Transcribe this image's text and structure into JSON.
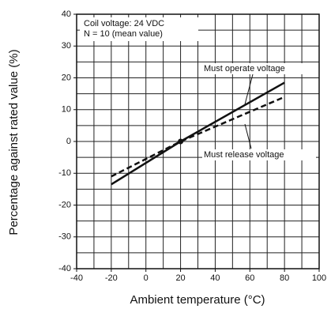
{
  "chart_data": {
    "type": "line",
    "x_label": "Ambient temperature (°C)",
    "y_label": "Percentage against rated value (%)",
    "annotations": [
      "Coil voltage: 24 VDC",
      "N = 10 (mean value)"
    ],
    "x": [
      -20,
      20,
      80
    ],
    "series": [
      {
        "name": "Must operate voltage",
        "color": "#111111",
        "dash": false,
        "values": [
          -13.5,
          0,
          18.5
        ]
      },
      {
        "name": "Must release voltage",
        "color": "#111111",
        "dash": true,
        "values": [
          -11,
          0,
          14
        ]
      }
    ],
    "xlim": [
      -40,
      100
    ],
    "xticks": [
      -40,
      -20,
      0,
      20,
      40,
      60,
      80,
      100
    ],
    "ylim": [
      -40,
      40
    ],
    "yticks": [
      -40,
      -30,
      -20,
      -10,
      0,
      10,
      20,
      30,
      40
    ],
    "x_grid": [
      -40,
      -30,
      -20,
      -10,
      0,
      10,
      20,
      30,
      40,
      50,
      60,
      70,
      80,
      90,
      100
    ],
    "y_grid": [
      -40,
      -35,
      -30,
      -25,
      -20,
      -15,
      -10,
      -5,
      0,
      5,
      10,
      15,
      20,
      25,
      30,
      35,
      40
    ],
    "grid": true
  }
}
